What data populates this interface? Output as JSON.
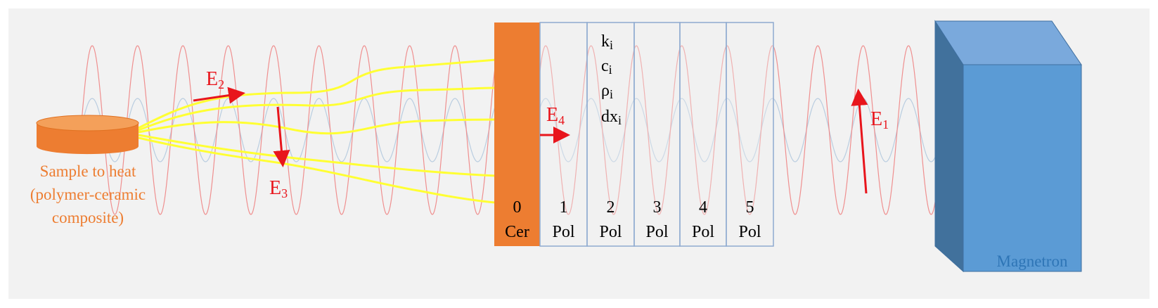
{
  "sample": {
    "label": [
      "Sample to heat",
      "(polymer-ceramic",
      "composite)"
    ]
  },
  "fields": [
    {
      "symbol": "E",
      "subscript": "1"
    },
    {
      "symbol": "E",
      "subscript": "2"
    },
    {
      "symbol": "E",
      "subscript": "3"
    },
    {
      "symbol": "E",
      "subscript": "4"
    }
  ],
  "layers": [
    {
      "index": 0,
      "material": "Cer"
    },
    {
      "index": 1,
      "material": "Pol"
    },
    {
      "index": 2,
      "material": "Pol"
    },
    {
      "index": 3,
      "material": "Pol"
    },
    {
      "index": 4,
      "material": "Pol"
    },
    {
      "index": 5,
      "material": "Pol"
    }
  ],
  "properties": [
    {
      "symbol": "k",
      "subscript": "i"
    },
    {
      "symbol": "c",
      "subscript": "i"
    },
    {
      "symbol": "ρ",
      "subscript": "i"
    },
    {
      "symbol": "dx",
      "subscript": "i"
    }
  ],
  "source": {
    "label": "Magnetron"
  }
}
